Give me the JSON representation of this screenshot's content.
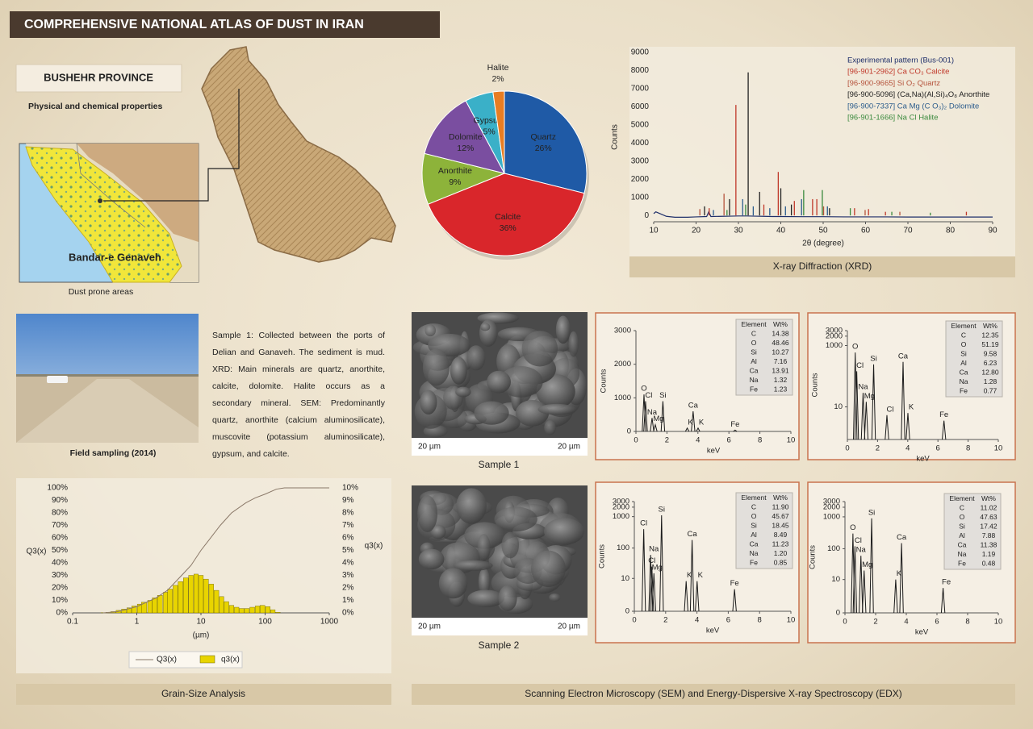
{
  "header": {
    "title": "COMPREHENSIVE NATIONAL ATLAS OF DUST IN IRAN"
  },
  "province": {
    "name": "BUSHEHR PROVINCE",
    "subtitle": "Physical and chemical properties"
  },
  "map": {
    "place_label": "Bandar-e Genaveh",
    "caption": "Dust prone areas"
  },
  "field": {
    "caption": "Field sampling (2014)",
    "description": "Sample 1: Collected between the ports of Delian and Ganaveh. The sediment is mud. XRD: Main minerals are quartz, anorthite, calcite, dolomite. Halite occurs as a secondary mineral. SEM: Predominantly quartz, anorthite (calcium aluminosilicate), muscovite (potassium aluminosilicate), gypsum, and calcite."
  },
  "sem": {
    "samples": [
      {
        "label": "Sample 1",
        "scale_left": "20 µm",
        "scale_right": "20 µm"
      },
      {
        "label": "Sample 2",
        "scale_left": "20 µm",
        "scale_right": "20 µm"
      }
    ]
  },
  "sections": {
    "xrd": "X-ray Diffraction (XRD)",
    "grain": "Grain-Size Analysis",
    "sem": "Scanning Electron Microscopy (SEM) and Energy-Dispersive X-ray Spectroscopy (EDX)"
  },
  "edx_tables": [
    {
      "columns": [
        "Element",
        "Wt%"
      ],
      "rows": [
        [
          "C",
          "14.38"
        ],
        [
          "O",
          "48.46"
        ],
        [
          "Si",
          "10.27"
        ],
        [
          "Al",
          "7.16"
        ],
        [
          "Ca",
          "13.91"
        ],
        [
          "Na",
          "1.32"
        ],
        [
          "Fe",
          "1.23"
        ]
      ]
    },
    {
      "columns": [
        "Element",
        "Wt%"
      ],
      "rows": [
        [
          "C",
          "12.35"
        ],
        [
          "O",
          "51.19"
        ],
        [
          "Si",
          "9.58"
        ],
        [
          "Al",
          "6.23"
        ],
        [
          "Ca",
          "12.80"
        ],
        [
          "Na",
          "1.28"
        ],
        [
          "Fe",
          "0.77"
        ]
      ]
    },
    {
      "columns": [
        "Element",
        "Wt%"
      ],
      "rows": [
        [
          "C",
          "11.90"
        ],
        [
          "O",
          "45.67"
        ],
        [
          "Si",
          "18.45"
        ],
        [
          "Al",
          "8.49"
        ],
        [
          "Ca",
          "11.23"
        ],
        [
          "Na",
          "1.20"
        ],
        [
          "Fe",
          "0.85"
        ]
      ]
    },
    {
      "columns": [
        "Element",
        "Wt%"
      ],
      "rows": [
        [
          "C",
          "11.02"
        ],
        [
          "O",
          "47.63"
        ],
        [
          "Si",
          "17.42"
        ],
        [
          "Al",
          "7.88"
        ],
        [
          "Ca",
          "11.38"
        ],
        [
          "Na",
          "1.19"
        ],
        [
          "Fe",
          "0.48"
        ]
      ]
    }
  ],
  "chart_data": [
    {
      "type": "pie",
      "categories": [
        "Quartz",
        "Calcite",
        "Anorthite",
        "Dolomite",
        "Gypsum",
        "Halite"
      ],
      "values": [
        26,
        36,
        9,
        12,
        5,
        2
      ],
      "value_labels": [
        "26%",
        "36%",
        "9%",
        "12%",
        "5%",
        "2%"
      ],
      "colors": [
        "#1f5aa6",
        "#d9262b",
        "#8db33a",
        "#7a4ea0",
        "#3ab0c8",
        "#e87d22"
      ]
    },
    {
      "type": "line",
      "xlabel": "2θ (degree)",
      "ylabel": "Counts",
      "xlim": [
        10,
        90
      ],
      "xticks": [
        10,
        20,
        30,
        40,
        50,
        60,
        70,
        80,
        90
      ],
      "ylim": [
        -350,
        9000
      ],
      "yticks": [
        0,
        1000,
        2000,
        3000,
        4000,
        5000,
        6000,
        7000,
        8000,
        9000
      ],
      "legend": "top-right",
      "series": [
        {
          "name": "Experimental pattern (Bus-001)",
          "color": "#1f2f6a",
          "style": "line",
          "x": [
            10,
            10.5,
            11,
            12,
            13,
            15,
            18,
            20,
            22.5,
            23,
            23.5,
            26,
            28,
            30,
            32,
            34,
            36,
            38,
            40,
            45,
            50,
            55,
            60,
            65,
            70,
            75,
            80,
            85,
            90
          ],
          "values": [
            100,
            200,
            150,
            50,
            -50,
            -100,
            -100,
            -80,
            -60,
            200,
            -60,
            -50,
            -40,
            -30,
            -30,
            -40,
            -50,
            -60,
            -60,
            -70,
            -70,
            -80,
            -80,
            -80,
            -90,
            -90,
            -90,
            -90,
            -90
          ]
        },
        {
          "name": "[96-901-2962] Ca CO₃ Calcite",
          "color": "#c0392b",
          "style": "stick",
          "x": [
            23.1,
            29.4,
            36,
            39.4,
            43.2,
            47.5,
            48.5,
            57.4,
            60.7,
            64.7,
            83.8
          ],
          "values": [
            400,
            6100,
            600,
            2400,
            800,
            900,
            900,
            400,
            350,
            200,
            200
          ]
        },
        {
          "name": "[96-900-9665] Si O₂ Quartz",
          "color": "#b5533c",
          "style": "stick",
          "x": [
            20.9,
            26.6,
            50.1,
            59.9,
            68.1
          ],
          "values": [
            350,
            1200,
            500,
            300,
            200
          ]
        },
        {
          "name": "[96-900-5096] (Ca,Na)(Al,Si)₄O₈ Anorthite",
          "color": "#222222",
          "style": "stick",
          "x": [
            22,
            27.9,
            32.3,
            35,
            40,
            42.5,
            51.5
          ],
          "values": [
            500,
            900,
            7900,
            1300,
            1500,
            600,
            400
          ]
        },
        {
          "name": "[96-900-7337] Ca Mg (C O₃)₂ Dolomite",
          "color": "#2b5c8c",
          "style": "stick",
          "x": [
            24.1,
            31,
            33.5,
            37.4,
            41.1,
            44.9,
            51
          ],
          "values": [
            300,
            900,
            500,
            400,
            500,
            900,
            500
          ]
        },
        {
          "name": "[96-901-1666] Na Cl Halite",
          "color": "#3b8a3e",
          "style": "stick",
          "x": [
            27.3,
            31.7,
            45.4,
            49.8,
            56.4,
            66.2,
            75.3
          ],
          "values": [
            300,
            600,
            1400,
            1400,
            400,
            200,
            150
          ]
        }
      ]
    },
    {
      "type": "combo",
      "xlabel": "(µm)",
      "ylabel": "Q3(x)",
      "y2label": "q3(x)",
      "xscale": "log",
      "xlim": [
        0.1,
        1000
      ],
      "xticks": [
        0.1,
        1,
        10,
        100,
        1000
      ],
      "ylim": [
        0,
        100
      ],
      "yticks": [
        {
          "value": 0,
          "label": "0%"
        },
        {
          "value": 10,
          "label": "10%"
        },
        {
          "value": 20,
          "label": "20%"
        },
        {
          "value": 30,
          "label": "30%"
        },
        {
          "value": 40,
          "label": "40%"
        },
        {
          "value": 50,
          "label": "50%"
        },
        {
          "value": 60,
          "label": "60%"
        },
        {
          "value": 70,
          "label": "70%"
        },
        {
          "value": 80,
          "label": "80%"
        },
        {
          "value": 90,
          "label": "90%"
        },
        {
          "value": 100,
          "label": "100%"
        }
      ],
      "y2lim": [
        0,
        10
      ],
      "y2ticks": [
        {
          "value": 0,
          "label": "0%"
        },
        {
          "value": 1,
          "label": "1%"
        },
        {
          "value": 2,
          "label": "2%"
        },
        {
          "value": 3,
          "label": "3%"
        },
        {
          "value": 4,
          "label": "4%"
        },
        {
          "value": 5,
          "label": "5%"
        },
        {
          "value": 6,
          "label": "6%"
        },
        {
          "value": 7,
          "label": "7%"
        },
        {
          "value": 8,
          "label": "8%"
        },
        {
          "value": 9,
          "label": "9%"
        },
        {
          "value": 10,
          "label": "10%"
        }
      ],
      "legend": "bottom",
      "series": [
        {
          "name": "Q3(x)",
          "type": "line",
          "color": "#8a7868",
          "x": [
            0.3,
            0.5,
            1,
            2,
            3,
            5,
            7,
            10,
            20,
            30,
            50,
            70,
            100,
            150,
            200,
            1000
          ],
          "values": [
            0,
            1,
            5,
            12,
            18,
            30,
            38,
            50,
            70,
            80,
            88,
            92,
            95,
            99,
            100,
            100
          ]
        },
        {
          "name": "q3(x)",
          "type": "bar",
          "axis": "y2",
          "color": "#e8d400",
          "x": [
            0.3,
            0.36,
            0.43,
            0.52,
            0.63,
            0.76,
            0.91,
            1.1,
            1.3,
            1.6,
            1.9,
            2.3,
            2.8,
            3.3,
            4,
            4.8,
            5.8,
            7,
            8.4,
            10,
            12,
            14.5,
            17.4,
            21,
            25,
            30,
            36,
            43,
            52,
            63,
            76,
            91,
            110,
            132,
            158
          ],
          "values": [
            0.02,
            0.05,
            0.1,
            0.2,
            0.3,
            0.4,
            0.55,
            0.7,
            0.85,
            1.0,
            1.2,
            1.4,
            1.65,
            1.9,
            2.2,
            2.5,
            2.8,
            3.0,
            3.1,
            3.0,
            2.7,
            2.3,
            1.8,
            1.3,
            0.9,
            0.6,
            0.45,
            0.35,
            0.35,
            0.45,
            0.55,
            0.6,
            0.5,
            0.25,
            0.05
          ]
        }
      ]
    },
    {
      "type": "spectrum",
      "xlabel": "keV",
      "ylabel": "Counts",
      "color": "#1a1a1a",
      "xlim": [
        0,
        10
      ],
      "xticks": [
        0,
        2,
        4,
        6,
        8,
        10
      ],
      "yscale": "linear",
      "ylim": [
        0,
        3000
      ],
      "yticks": [
        0,
        1000,
        2000,
        3000
      ],
      "peak_labels": [
        "O",
        "Cl",
        "Na",
        "Mg",
        "Si",
        "K",
        "Ca",
        "K",
        "Fe"
      ],
      "x": [
        0.52,
        0.62,
        1.04,
        1.25,
        1.74,
        3.31,
        3.69,
        4.01,
        6.4
      ],
      "values": [
        1100,
        900,
        400,
        200,
        900,
        100,
        600,
        100,
        40
      ]
    },
    {
      "type": "spectrum",
      "xlabel": "keV",
      "ylabel": "Counts",
      "color": "#1a1a1a",
      "xlim": [
        0,
        10
      ],
      "xticks": [
        0,
        2,
        4,
        6,
        8,
        10
      ],
      "yscale": "symlog",
      "ylim": [
        0,
        3000
      ],
      "yticks": [
        10,
        1000,
        2000,
        3000
      ],
      "peak_labels": [
        "O",
        "Cl",
        "Na",
        "Mg",
        "Si",
        "Cl",
        "Ca",
        "K",
        "Fe"
      ],
      "x": [
        0.52,
        0.62,
        1.04,
        1.25,
        1.74,
        2.62,
        3.69,
        4.01,
        6.4
      ],
      "values": [
        600,
        150,
        30,
        15,
        250,
        5,
        300,
        6,
        3
      ]
    },
    {
      "type": "spectrum",
      "xlabel": "keV",
      "ylabel": "Counts",
      "color": "#1a1a1a",
      "xlim": [
        0,
        10
      ],
      "xticks": [
        0,
        2,
        4,
        6,
        8,
        10
      ],
      "yscale": "symlog",
      "ylim": [
        0,
        3000
      ],
      "yticks": [
        0,
        10,
        100,
        1000,
        2000,
        3000
      ],
      "peak_labels": [
        "Cl",
        "Na",
        "Cl",
        "Mg",
        "Si",
        "K",
        "Ca",
        "K",
        "Fe"
      ],
      "x": [
        0.6,
        1.04,
        1.12,
        1.25,
        1.74,
        3.31,
        3.69,
        4.01,
        6.4
      ],
      "values": [
        400,
        60,
        25,
        15,
        1100,
        8,
        180,
        8,
        4
      ]
    },
    {
      "type": "spectrum",
      "xlabel": "keV",
      "ylabel": "Counts",
      "color": "#1a1a1a",
      "xlim": [
        0,
        10
      ],
      "xticks": [
        0,
        2,
        4,
        6,
        8,
        10
      ],
      "yscale": "symlog",
      "ylim": [
        0,
        3000
      ],
      "yticks": [
        0,
        10,
        100,
        1000,
        2000,
        3000
      ],
      "peak_labels": [
        "O",
        "Cl",
        "Na",
        "Mg",
        "Si",
        "K",
        "Ca",
        "Fe"
      ],
      "x": [
        0.52,
        0.65,
        1.04,
        1.25,
        1.74,
        3.31,
        3.69,
        6.4
      ],
      "values": [
        300,
        120,
        60,
        20,
        900,
        10,
        150,
        5
      ]
    }
  ]
}
